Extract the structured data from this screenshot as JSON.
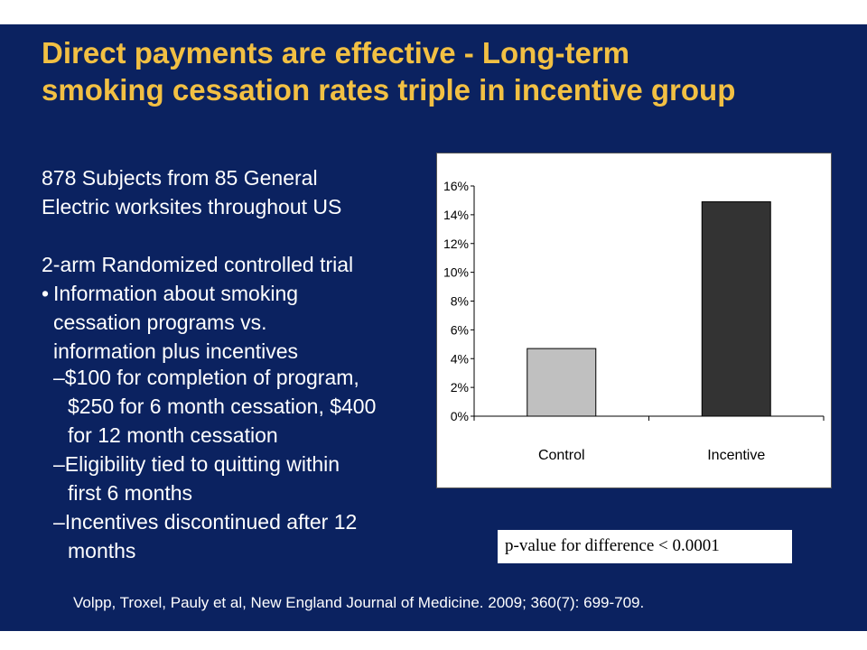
{
  "slide": {
    "title_line1": "Direct payments are effective - Long-term",
    "title_line2": "smoking cessation rates triple in incentive group",
    "text": {
      "subjects_line1": "878 Subjects from 85 General",
      "subjects_line2": "Electric worksites throughout US",
      "design": "2-arm Randomized controlled trial",
      "bullet_symbol": "•",
      "bullet_line1": "Information about smoking",
      "bullet_line2": "cessation programs vs.",
      "bullet_line3": "information plus incentives",
      "sub1_line1": "–$100 for completion of program,",
      "sub1_line2": "$250 for 6 month cessation, $400",
      "sub1_line3": "for 12 month cessation",
      "sub2_line1": "–Eligibility tied to quitting within",
      "sub2_line2": "first 6 months",
      "sub3_line1": "–Incentives discontinued after 12",
      "sub3_line2": "months"
    },
    "pvalue": "p-value for difference < 0.0001",
    "citation": "Volpp, Troxel, Pauly  et al, New England Journal of Medicine. 2009; 360(7):  699-709."
  },
  "colors": {
    "background": "#0b2260",
    "title": "#f2c043",
    "control_bar": "#c0c0c0",
    "incentive_bar": "#333333"
  },
  "chart_data": {
    "type": "bar",
    "title": "",
    "xlabel": "",
    "ylabel": "",
    "categories": [
      "Control",
      "Incentive"
    ],
    "values": [
      4.7,
      14.9
    ],
    "ylim": [
      0,
      16
    ],
    "yticks": [
      0,
      2,
      4,
      6,
      8,
      10,
      12,
      14,
      16
    ],
    "ytick_labels": [
      "0%",
      "2%",
      "4%",
      "6%",
      "8%",
      "10%",
      "12%",
      "14%",
      "16%"
    ],
    "bar_colors": [
      "#c0c0c0",
      "#333333"
    ],
    "grid": false,
    "legend": "none"
  }
}
